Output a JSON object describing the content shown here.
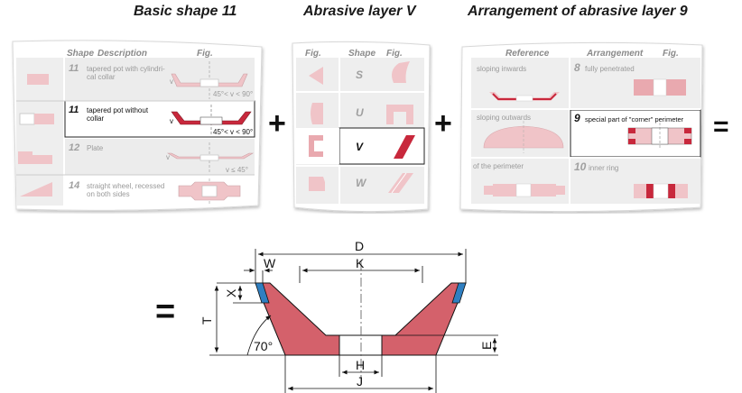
{
  "headings": {
    "basic_shape": "Basic shape 11",
    "abrasive_layer": "Abrasive layer V",
    "arrangement": "Arrangement of abrasive layer 9"
  },
  "card1": {
    "col_shape": "Shape",
    "col_description": "Description",
    "col_fig": "Fig.",
    "rows": [
      {
        "num": "11",
        "desc_1": "tapered pot with cylindri-",
        "desc_2": "cal collar",
        "angle": "45°< v < 90°",
        "v": "v"
      },
      {
        "num": "11",
        "desc_1": "tapered pot without",
        "desc_2": "collar",
        "angle": "45°< v < 90°",
        "v": "v"
      },
      {
        "num": "12",
        "desc_1": "Plate",
        "desc_2": "",
        "angle": "v ≤ 45°",
        "v": "v"
      },
      {
        "num": "14",
        "desc_1": "straight wheel, recessed",
        "desc_2": "on both sides",
        "angle": "",
        "v": ""
      }
    ]
  },
  "card2": {
    "col_fig": "Fig.",
    "col_shape": "Shape",
    "col_fig2": "Fig.",
    "rows": [
      {
        "shape": "S"
      },
      {
        "shape": "U"
      },
      {
        "shape": "V"
      },
      {
        "shape": "W"
      }
    ]
  },
  "card3": {
    "col_reference": "Reference",
    "col_arrangement": "Arrangement",
    "col_fig": "Fig.",
    "rows": [
      {
        "left": "sloping inwards",
        "num": "8",
        "right": "fully penetrated"
      },
      {
        "left": "sloping outwards",
        "num": "9",
        "right": "special part of \"corner\" perimeter"
      },
      {
        "left": "of the perimeter",
        "num": "10",
        "right": "inner ring"
      }
    ]
  },
  "operators": {
    "plus_1": "+",
    "plus_2": "+",
    "equals_1": "=",
    "equals_2": "="
  },
  "drawing": {
    "labels": {
      "D": "D",
      "W": "W",
      "K": "K",
      "X": "X",
      "T": "T",
      "angle": "70°",
      "E": "E",
      "H": "H",
      "J": "J"
    }
  },
  "colors": {
    "body_red": "#d4616b",
    "abrasive_blue": "#2f7fc1",
    "card_pink": "#f2c9cc",
    "card_highlight": "#c8283c",
    "card_grey": "#e9e9e9"
  }
}
